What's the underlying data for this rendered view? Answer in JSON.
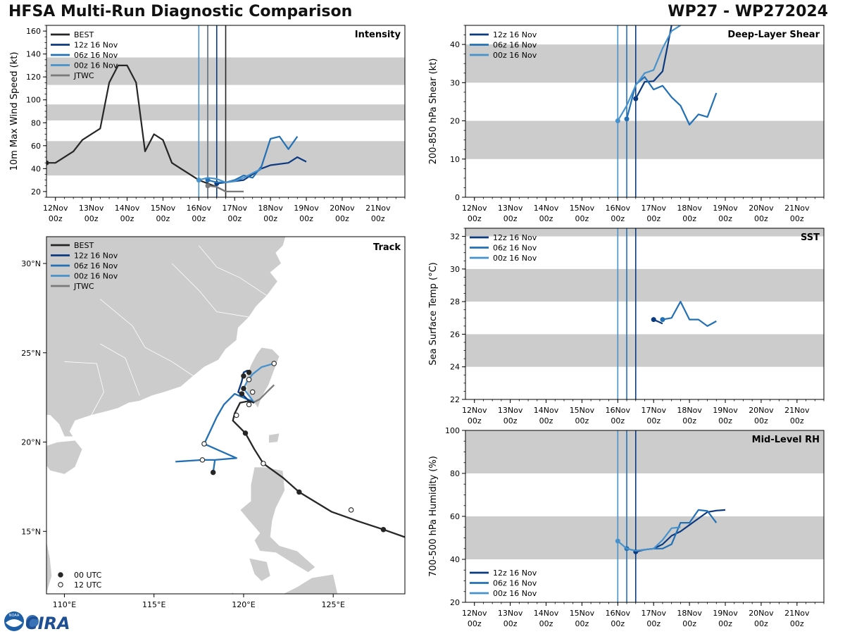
{
  "header": {
    "title_left": "HFSA Multi-Run Diagnostic Comparison",
    "title_right": "WP27 - WP272024"
  },
  "colors": {
    "BEST": "#262626",
    "r12": "#0c3a80",
    "r06": "#2370b5",
    "r00": "#4892cc",
    "JTWC": "#7a7a7a",
    "band": "#cccccc",
    "land": "#cccccc",
    "land_border": "#ffffff"
  },
  "time_axis": {
    "ticks_top": [
      "12Nov",
      "13Nov",
      "14Nov",
      "15Nov",
      "16Nov",
      "17Nov",
      "18Nov",
      "19Nov",
      "20Nov",
      "21Nov"
    ],
    "ticks_bottom": [
      "00z",
      "00z",
      "00z",
      "00z",
      "00z",
      "00z",
      "00z",
      "00z",
      "00z",
      "00z"
    ],
    "init_lines": [
      16.0,
      16.25,
      16.5
    ]
  },
  "chart_data": [
    {
      "type": "line",
      "panel": "intensity",
      "title": "Intensity",
      "ylabel": "10m Max Wind Speed (kt)",
      "ylim": [
        15,
        165
      ],
      "yticks": [
        20,
        40,
        60,
        80,
        100,
        120,
        140,
        160
      ],
      "bands": [
        [
          34,
          64
        ],
        [
          82,
          96
        ],
        [
          113,
          137
        ]
      ],
      "extra_vlines": [
        {
          "day": 16.25,
          "series": "JTWC"
        },
        {
          "day": 16.75,
          "series": "BEST"
        }
      ],
      "legend": [
        "BEST",
        "12z 16 Nov",
        "06z 16 Nov",
        "00z 16 Nov",
        "JTWC"
      ],
      "series": [
        {
          "name": "BEST",
          "key": "BEST",
          "x": [
            11.75,
            12.0,
            12.5,
            12.75,
            13.25,
            13.5,
            13.75,
            14.0,
            14.25,
            14.5,
            14.75,
            15.0,
            15.25,
            16.0,
            16.25,
            16.5,
            16.75
          ],
          "values": [
            45,
            45,
            55,
            65,
            75,
            115,
            130,
            130,
            115,
            55,
            70,
            65,
            45,
            30,
            27,
            24,
            20
          ]
        },
        {
          "name": "12z 16 Nov",
          "key": "r12",
          "x": [
            16.5,
            16.75,
            17.25,
            17.5,
            17.75,
            18.0,
            18.5,
            18.75,
            19.0
          ],
          "values": [
            27,
            28,
            30,
            35,
            40,
            43,
            45,
            50,
            46
          ]
        },
        {
          "name": "06z 16 Nov",
          "key": "r06",
          "x": [
            16.25,
            16.5,
            16.75,
            17.0,
            17.25,
            17.5,
            17.75,
            18.0,
            18.25,
            18.5,
            18.75
          ],
          "values": [
            30,
            28,
            28,
            30,
            34,
            32,
            42,
            66,
            68,
            57,
            68
          ]
        },
        {
          "name": "00z 16 Nov",
          "key": "r00",
          "x": [
            16.0,
            16.25,
            16.5,
            16.75,
            17.0,
            17.25,
            17.5,
            17.75
          ],
          "values": [
            30,
            32,
            31,
            28,
            29,
            32,
            36,
            40
          ]
        },
        {
          "name": "JTWC",
          "key": "JTWC",
          "x": [
            16.25,
            16.5,
            16.75,
            17.0,
            17.25
          ],
          "values": [
            25,
            24,
            20,
            20,
            20
          ]
        }
      ]
    },
    {
      "type": "line",
      "panel": "shear",
      "title": "Deep-Layer Shear",
      "ylabel": "200-850 hPa Shear (kt)",
      "ylim": [
        0,
        45
      ],
      "yticks": [
        0,
        10,
        20,
        30,
        40
      ],
      "bands": [
        [
          10,
          20
        ],
        [
          30,
          40
        ]
      ],
      "legend": [
        "12z 16 Nov",
        "06z 16 Nov",
        "00z 16 Nov"
      ],
      "series": [
        {
          "name": "12z 16 Nov",
          "key": "r12",
          "x": [
            16.5,
            16.75,
            17.0,
            17.25,
            17.5
          ],
          "values": [
            25.8,
            30.2,
            30.4,
            33,
            45
          ]
        },
        {
          "name": "06z 16 Nov",
          "key": "r06",
          "x": [
            16.25,
            16.5,
            16.75,
            17.0,
            17.25,
            17.5,
            17.75,
            18.0,
            18.25,
            18.5,
            18.75
          ],
          "values": [
            20.5,
            29.5,
            31.5,
            28.2,
            29.2,
            26.2,
            24,
            19,
            21.7,
            21,
            27.3
          ]
        },
        {
          "name": "00z 16 Nov",
          "key": "r00",
          "x": [
            16.0,
            16.25,
            16.5,
            16.75,
            17.0,
            17.25,
            17.5,
            17.75
          ],
          "values": [
            20,
            24,
            29.3,
            32.5,
            33.3,
            39,
            43.5,
            45
          ]
        }
      ]
    },
    {
      "type": "line",
      "panel": "sst",
      "title": "SST",
      "ylabel": "Sea Surface Temp (°C)",
      "ylim": [
        22,
        32.5
      ],
      "yticks": [
        22,
        24,
        26,
        28,
        30,
        32
      ],
      "bands": [
        [
          24,
          26
        ],
        [
          28,
          30
        ],
        [
          32,
          34
        ]
      ],
      "legend": [
        "12z 16 Nov",
        "06z 16 Nov",
        "00z 16 Nov"
      ],
      "series": [
        {
          "name": "12z 16 Nov",
          "key": "r12",
          "x": [
            17.0,
            17.25
          ],
          "values": [
            26.9,
            26.65
          ]
        },
        {
          "name": "06z 16 Nov",
          "key": "r06",
          "x": [
            17.25,
            17.5,
            17.75,
            18.0,
            18.25,
            18.5,
            18.75
          ],
          "values": [
            26.9,
            27.0,
            28.0,
            26.9,
            26.9,
            26.5,
            26.8
          ]
        }
      ]
    },
    {
      "type": "line",
      "panel": "rh",
      "title": "Mid-Level RH",
      "ylabel": "700-500 hPa Humidity (%)",
      "ylim": [
        20,
        100
      ],
      "yticks": [
        20,
        40,
        60,
        80,
        100
      ],
      "bands": [
        [
          40,
          60
        ],
        [
          80,
          100
        ]
      ],
      "legend": [
        "12z 16 Nov",
        "06z 16 Nov",
        "00z 16 Nov"
      ],
      "series": [
        {
          "name": "12z 16 Nov",
          "key": "r12",
          "x": [
            16.5,
            16.75,
            17.0,
            17.25,
            17.5,
            17.75,
            18.0,
            18.25,
            18.5,
            18.75,
            19.0
          ],
          "values": [
            43.5,
            44.5,
            45,
            47,
            51,
            53,
            56,
            59,
            62,
            62.7,
            63
          ]
        },
        {
          "name": "06z 16 Nov",
          "key": "r06",
          "x": [
            16.25,
            16.5,
            16.75,
            17.0,
            17.25,
            17.5,
            17.75,
            18.0,
            18.25,
            18.5,
            18.75
          ],
          "values": [
            45,
            44,
            44.5,
            45,
            45,
            47,
            57,
            57,
            63,
            62.5,
            57
          ]
        },
        {
          "name": "00z 16 Nov",
          "key": "r00",
          "x": [
            16.0,
            16.25,
            16.5,
            16.75,
            17.0,
            17.25,
            17.5,
            17.75
          ],
          "values": [
            48.5,
            45,
            44,
            44.5,
            45,
            49,
            54.5,
            55
          ]
        }
      ]
    },
    {
      "type": "scatter",
      "panel": "track",
      "title": "Track",
      "xlim": [
        109,
        129
      ],
      "ylim": [
        11.5,
        31.5
      ],
      "xticks": [
        110,
        115,
        120,
        125
      ],
      "xtick_labels": [
        "110°E",
        "115°E",
        "120°E",
        "125°E"
      ],
      "yticks": [
        15,
        20,
        25,
        30
      ],
      "ytick_labels": [
        "15°N",
        "20°N",
        "25°N",
        "30°N"
      ],
      "legend": [
        "BEST",
        "12z 16 Nov",
        "06z 16 Nov",
        "00z 16 Nov",
        "JTWC"
      ],
      "time_legend": [
        "00 UTC",
        "12 UTC"
      ],
      "series": [
        {
          "name": "BEST",
          "key": "BEST",
          "lon": [
            129.5,
            127.8,
            126.3,
            124.9,
            123.1,
            122.2,
            121.1,
            120.6,
            120.1,
            119.6,
            119.4,
            119.5,
            119.8,
            120.3,
            120.6
          ],
          "lat": [
            14.5,
            15.1,
            15.6,
            16.1,
            17.2,
            18.0,
            18.8,
            19.6,
            20.5,
            21.0,
            21.2,
            21.6,
            22.2,
            22.3,
            22.2
          ],
          "markers": [
            {
              "lon": 127.8,
              "lat": 15.1,
              "m": "00"
            },
            {
              "lon": 126.0,
              "lat": 16.2,
              "m": "12"
            },
            {
              "lon": 123.1,
              "lat": 17.2,
              "m": "00"
            },
            {
              "lon": 121.1,
              "lat": 18.8,
              "m": "12"
            },
            {
              "lon": 120.1,
              "lat": 20.5,
              "m": "00"
            },
            {
              "lon": 119.6,
              "lat": 21.5,
              "m": "12"
            },
            {
              "lon": 120.0,
              "lat": 23.0,
              "m": "00"
            },
            {
              "lon": 120.3,
              "lat": 23.9,
              "m": "00"
            }
          ]
        },
        {
          "name": "12z 16 Nov",
          "key": "r12",
          "lon": [
            120.4,
            120.0,
            119.7,
            119.9,
            120.0,
            120.2,
            120.3
          ],
          "lat": [
            22.2,
            22.6,
            22.8,
            23.4,
            23.9,
            24.0,
            23.8
          ],
          "markers": [
            {
              "lon": 119.9,
              "lat": 22.7,
              "m": "00"
            },
            {
              "lon": 120.0,
              "lat": 23.7,
              "m": "00"
            }
          ]
        },
        {
          "name": "06z 16 Nov",
          "key": "r06",
          "lon": [
            120.5,
            120.2,
            119.5,
            118.9,
            119.8,
            118.5,
            117.8,
            118.9,
            119.8,
            120.3,
            120.0,
            120.2,
            120.6,
            116.2,
            117.7,
            118.3,
            118.4
          ],
          "lat": [
            22.3,
            22.4,
            22.7,
            22.1,
            21.1,
            20.0,
            19.9,
            19.2,
            20.0,
            23.5,
            23.9,
            22.3,
            22.8,
            18.9,
            19.0,
            19.0,
            18.3
          ],
          "path": [
            [
              120.5,
              22.3
            ],
            [
              120.2,
              22.4
            ],
            [
              119.5,
              22.7
            ],
            [
              118.9,
              22.1
            ],
            [
              118.5,
              21.4
            ],
            [
              117.8,
              19.9
            ],
            [
              119.6,
              19.1
            ],
            [
              118.4,
              19.0
            ],
            [
              117.7,
              19.0
            ],
            [
              116.2,
              18.9
            ]
          ],
          "path2": [
            [
              118.4,
              19.0
            ],
            [
              118.3,
              18.3
            ]
          ],
          "markers": [
            {
              "lon": 117.8,
              "lat": 19.9,
              "m": "12"
            },
            {
              "lon": 117.7,
              "lat": 19.0,
              "m": "12"
            },
            {
              "lon": 118.3,
              "lat": 18.3,
              "m": "00"
            },
            {
              "lon": 120.3,
              "lat": 23.5,
              "m": "12"
            },
            {
              "lon": 120.5,
              "lat": 22.8,
              "m": "12"
            }
          ]
        },
        {
          "name": "00z 16 Nov",
          "key": "r00",
          "lon": [
            120.6,
            120.3,
            120.0,
            120.2,
            120.5,
            121.0,
            121.7
          ],
          "lat": [
            22.2,
            22.6,
            23.0,
            23.4,
            23.8,
            24.2,
            24.4
          ],
          "markers": [
            {
              "lon": 121.7,
              "lat": 24.4,
              "m": "12"
            },
            {
              "lon": 120.3,
              "lat": 22.1,
              "m": "12"
            }
          ]
        },
        {
          "name": "JTWC",
          "key": "JTWC",
          "lon": [
            120.5,
            120.9,
            121.3,
            121.7
          ],
          "lat": [
            22.2,
            22.4,
            22.8,
            23.2
          ],
          "markers": []
        }
      ]
    }
  ],
  "logo": {
    "text": "CIRA",
    "agency": "NOAA"
  }
}
